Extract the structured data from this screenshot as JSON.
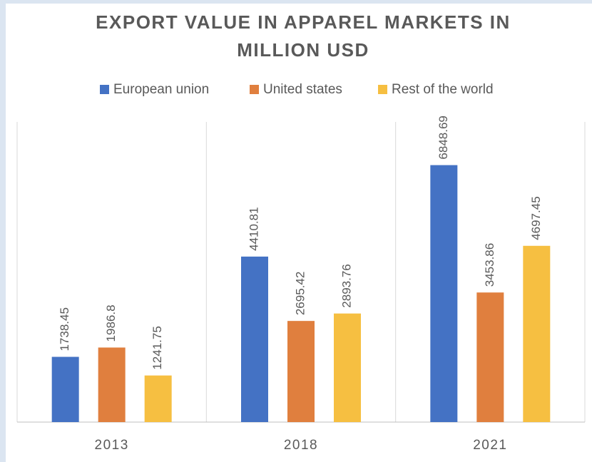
{
  "chart_data": {
    "type": "bar",
    "title": [
      "EXPORT VALUE IN APPAREL MARKETS IN",
      "MILLION USD"
    ],
    "categories": [
      "2013",
      "2018",
      "2021"
    ],
    "series": [
      {
        "name": "European union",
        "color": "#4472c4",
        "values": [
          1738.45,
          4410.81,
          6848.69
        ]
      },
      {
        "name": "United states",
        "color": "#e07f3e",
        "values": [
          1986.8,
          2695.42,
          3453.86
        ]
      },
      {
        "name": "Rest of the world",
        "color": "#f6bf41",
        "values": [
          1241.75,
          2893.76,
          4697.45
        ]
      }
    ],
    "ylim": [
      0,
      8000
    ],
    "legend": "top"
  }
}
